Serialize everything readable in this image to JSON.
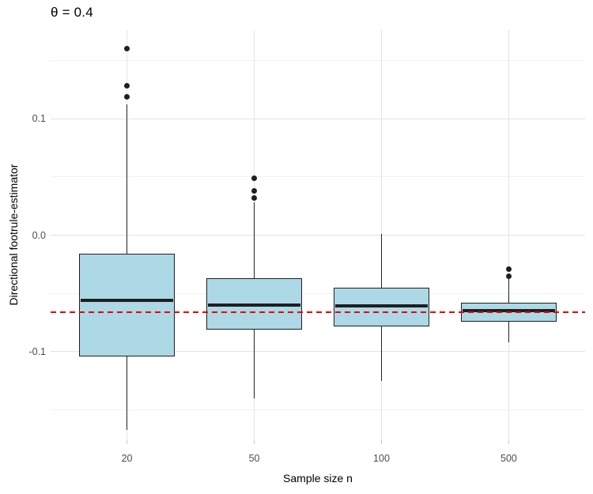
{
  "chart_data": {
    "type": "boxplot",
    "title": "θ = 0.4",
    "xlabel": "Sample size n",
    "ylabel": "Directional footrule-estimator",
    "categories": [
      "20",
      "50",
      "100",
      "500"
    ],
    "ylim": [
      -0.176,
      0.176
    ],
    "y_major_ticks": [
      0.1,
      0.0,
      -0.1
    ],
    "y_tick_labels": [
      "0.1",
      "0.0",
      "-0.1"
    ],
    "y_minor_ticks": [
      0.15,
      0.05,
      -0.05,
      -0.15
    ],
    "grid": true,
    "reference_line": {
      "value": -0.066,
      "style": "dashed",
      "color": "#ee0000"
    },
    "series": [
      {
        "category": "20",
        "whisker_low": -0.167,
        "q1": -0.104,
        "median": -0.056,
        "q3": -0.016,
        "whisker_high": 0.112,
        "outliers": [
          0.16,
          0.128,
          0.119
        ]
      },
      {
        "category": "50",
        "whisker_low": -0.14,
        "q1": -0.081,
        "median": -0.06,
        "q3": -0.037,
        "whisker_high": 0.028,
        "outliers": [
          0.049,
          0.038,
          0.032
        ]
      },
      {
        "category": "100",
        "whisker_low": -0.125,
        "q1": -0.078,
        "median": -0.061,
        "q3": -0.045,
        "whisker_high": 0.001,
        "outliers": []
      },
      {
        "category": "500",
        "whisker_low": -0.092,
        "q1": -0.074,
        "median": -0.065,
        "q3": -0.058,
        "whisker_high": -0.037,
        "outliers": [
          -0.029,
          -0.035
        ]
      }
    ],
    "colors": {
      "box_fill": "#ADD8E6",
      "box_border": "#1f1f1f",
      "median": "#1f1f1f",
      "outlier": "#1f1f1f",
      "reference": "#ee0000",
      "grid_major": "#e4e4e4",
      "grid_minor": "#f2f2f2",
      "tick_text": "#4d4d4d"
    }
  }
}
